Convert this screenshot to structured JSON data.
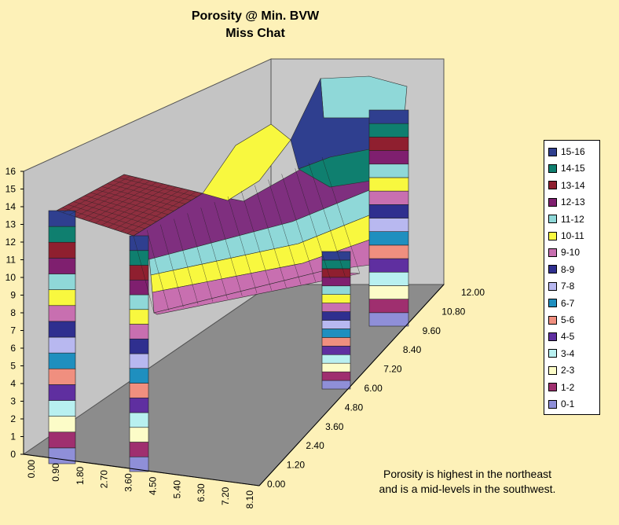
{
  "chart_data": {
    "type": "surface",
    "title": "Porosity @ Min. BVW",
    "subtitle": "Miss Chat",
    "z_ticks": [
      "0",
      "1",
      "2",
      "3",
      "4",
      "5",
      "6",
      "7",
      "8",
      "9",
      "10",
      "11",
      "12",
      "13",
      "14",
      "15",
      "16"
    ],
    "x_ticks": [
      "0.00",
      "0.90",
      "1.80",
      "2.70",
      "3.60",
      "4.50",
      "5.40",
      "6.30",
      "7.20",
      "8.10"
    ],
    "y_ticks": [
      "0.00",
      "1.20",
      "2.40",
      "3.60",
      "4.80",
      "6.00",
      "7.20",
      "8.40",
      "9.60",
      "10.80",
      "12.00"
    ],
    "zlim": [
      0,
      16
    ],
    "legend": [
      {
        "label": "15-16",
        "color": "#2f3f8f"
      },
      {
        "label": "14-15",
        "color": "#0f7f6f"
      },
      {
        "label": "13-14",
        "color": "#8f1f2f"
      },
      {
        "label": "12-13",
        "color": "#7f1f6f"
      },
      {
        "label": "11-12",
        "color": "#8fd8d8"
      },
      {
        "label": "10-11",
        "color": "#f8f83f"
      },
      {
        "label": "9-10",
        "color": "#c86fb0"
      },
      {
        "label": "8-9",
        "color": "#2f2f8f"
      },
      {
        "label": "7-8",
        "color": "#b8b8f0"
      },
      {
        "label": "6-7",
        "color": "#1f8fbf"
      },
      {
        "label": "5-6",
        "color": "#f08f7f"
      },
      {
        "label": "4-5",
        "color": "#5f2fa0"
      },
      {
        "label": "3-4",
        "color": "#b8f0f0"
      },
      {
        "label": "2-3",
        "color": "#fcfcc8"
      },
      {
        "label": "1-2",
        "color": "#9f2f6f"
      },
      {
        "label": "0-1",
        "color": "#8f8fd8"
      }
    ],
    "annotation": [
      "Porosity is highest in the northeast",
      "and is a mid-levels in the southwest."
    ]
  }
}
